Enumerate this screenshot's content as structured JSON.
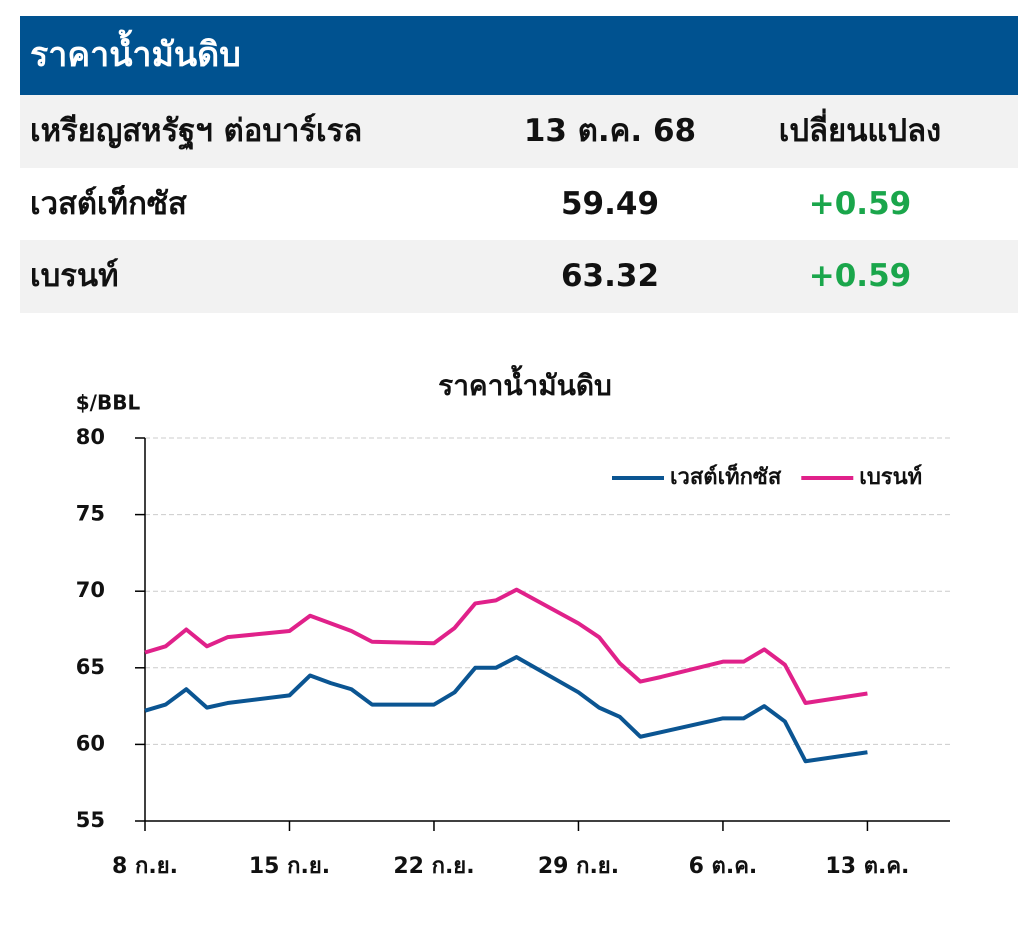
{
  "header": {
    "title": "ราคาน้ำมันดิบ"
  },
  "table": {
    "columns": [
      "เหรียญสหรัฐฯ ต่อบาร์เรล",
      "13 ต.ค. 68",
      "เปลี่ยนแปลง"
    ],
    "rows": [
      [
        "เวสต์เท็กซัส",
        "59.49",
        "+0.59"
      ],
      [
        "เบรนท์",
        "63.32",
        "+0.59"
      ]
    ]
  },
  "chart_data": {
    "type": "line",
    "title": "ราคาน้ำมันดิบ",
    "y_label": "$/BBL",
    "x": [
      0,
      1,
      2,
      3,
      4,
      7,
      8,
      9,
      10,
      11,
      14,
      15,
      16,
      17,
      18,
      21,
      22,
      23,
      24,
      25,
      28,
      29,
      30,
      31,
      32,
      35
    ],
    "xlim": [
      0,
      39
    ],
    "xticks": [
      {
        "value": 0,
        "label": "8 ก.ย."
      },
      {
        "value": 7,
        "label": "15 ก.ย."
      },
      {
        "value": 14,
        "label": "22 ก.ย."
      },
      {
        "value": 21,
        "label": "29 ก.ย."
      },
      {
        "value": 28,
        "label": "6 ต.ค."
      },
      {
        "value": 35,
        "label": "13 ต.ค."
      }
    ],
    "ylim": [
      55,
      80
    ],
    "yticks": [
      55,
      60,
      65,
      70,
      75,
      80
    ],
    "grid": true,
    "legend": "upper right",
    "series": [
      {
        "name": "เวสต์เท็กซัส",
        "color": "#0b5592",
        "values": [
          62.2,
          62.6,
          63.6,
          62.4,
          62.7,
          63.2,
          64.5,
          64.0,
          63.6,
          62.6,
          62.6,
          63.4,
          65.0,
          65.0,
          65.7,
          63.4,
          62.4,
          61.8,
          60.5,
          60.8,
          61.7,
          61.7,
          62.5,
          61.5,
          58.9,
          59.49
        ]
      },
      {
        "name": "เบรนท์",
        "color": "#e0218a",
        "values": [
          66.0,
          66.4,
          67.5,
          66.4,
          67.0,
          67.4,
          68.4,
          67.9,
          67.4,
          66.7,
          66.6,
          67.6,
          69.2,
          69.4,
          70.1,
          67.9,
          67.0,
          65.3,
          64.1,
          64.4,
          65.4,
          65.4,
          66.2,
          65.2,
          62.7,
          63.32
        ]
      }
    ]
  }
}
